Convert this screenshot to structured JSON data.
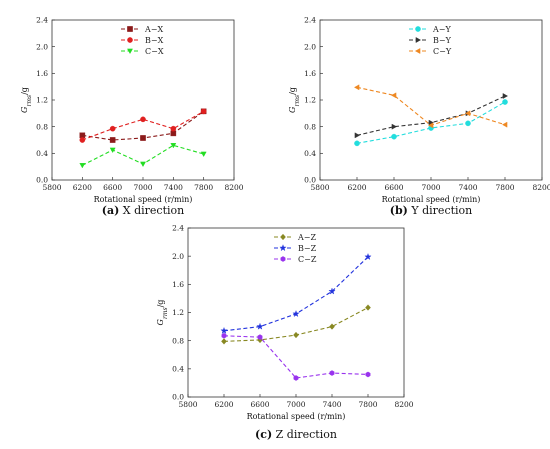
{
  "chart_data": [
    {
      "type": "line",
      "caption_letter": "(a)",
      "caption_text": " X direction",
      "xlabel": "Rotational speed  (r/min)",
      "ylabel_main": "G",
      "ylabel_sub": "rms",
      "ylabel_unit": "/g",
      "xlim": [
        5800,
        8200
      ],
      "ylim": [
        0,
        2.4
      ],
      "xticks": [
        5800,
        6200,
        6600,
        7000,
        7400,
        7800,
        8200
      ],
      "yticks": [
        0.0,
        0.4,
        0.8,
        1.2,
        1.6,
        2.0,
        2.4
      ],
      "legend_position": "top-center",
      "x": [
        6200,
        6600,
        7000,
        7400,
        7800
      ],
      "series": [
        {
          "name": "A−X",
          "color": "#8b1a1a",
          "marker": "square",
          "values": [
            0.67,
            0.6,
            0.63,
            0.7,
            1.03
          ]
        },
        {
          "name": "B−X",
          "color": "#e02020",
          "marker": "circle",
          "values": [
            0.6,
            0.77,
            0.91,
            0.77,
            1.03
          ]
        },
        {
          "name": "C−X",
          "color": "#22dd22",
          "marker": "triangle-down",
          "values": [
            0.22,
            0.45,
            0.24,
            0.52,
            0.39
          ]
        }
      ]
    },
    {
      "type": "line",
      "caption_letter": "(b)",
      "caption_text": " Y direction",
      "xlabel": "Rotational speed  (r/min)",
      "ylabel_main": "G",
      "ylabel_sub": "rms",
      "ylabel_unit": "/g",
      "xlim": [
        5800,
        8200
      ],
      "ylim": [
        0,
        2.4
      ],
      "xticks": [
        5800,
        6200,
        6600,
        7000,
        7400,
        7800,
        8200
      ],
      "yticks": [
        0.0,
        0.4,
        0.8,
        1.2,
        1.6,
        2.0,
        2.4
      ],
      "legend_position": "top-center",
      "x": [
        6200,
        6600,
        7000,
        7400,
        7800
      ],
      "series": [
        {
          "name": "A−Y",
          "color": "#22dddd",
          "marker": "circle",
          "values": [
            0.55,
            0.65,
            0.78,
            0.85,
            1.17
          ]
        },
        {
          "name": "B−Y",
          "color": "#333333",
          "marker": "triangle-right",
          "values": [
            0.67,
            0.8,
            0.86,
            1.0,
            1.26
          ]
        },
        {
          "name": "C−Y",
          "color": "#ee8822",
          "marker": "triangle-left",
          "values": [
            1.39,
            1.27,
            0.82,
            1.0,
            0.83
          ]
        }
      ]
    },
    {
      "type": "line",
      "caption_letter": "(c)",
      "caption_text": " Z direction",
      "xlabel": "Rotational speed  (r/min)",
      "ylabel_main": "G",
      "ylabel_sub": "rms",
      "ylabel_unit": "/g",
      "xlim": [
        5800,
        8200
      ],
      "ylim": [
        0,
        2.4
      ],
      "xticks": [
        5800,
        6200,
        6600,
        7000,
        7400,
        7800,
        8200
      ],
      "yticks": [
        0.0,
        0.4,
        0.8,
        1.2,
        1.6,
        2.0,
        2.4
      ],
      "legend_position": "top-center",
      "x": [
        6200,
        6600,
        7000,
        7400,
        7800
      ],
      "series": [
        {
          "name": "A−Z",
          "color": "#888822",
          "marker": "diamond",
          "values": [
            0.79,
            0.81,
            0.88,
            1.0,
            1.27
          ]
        },
        {
          "name": "B−Z",
          "color": "#2233dd",
          "marker": "star",
          "values": [
            0.94,
            1.0,
            1.18,
            1.5,
            1.99
          ]
        },
        {
          "name": "C−Z",
          "color": "#9933ee",
          "marker": "hexagon",
          "values": [
            0.87,
            0.85,
            0.27,
            0.34,
            0.32
          ]
        }
      ]
    }
  ]
}
